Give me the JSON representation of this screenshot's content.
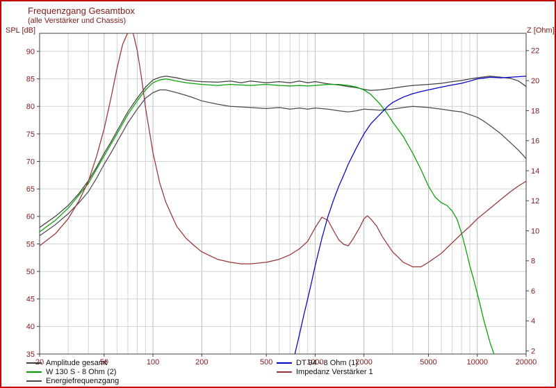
{
  "header": {
    "title": "Frequenzgang Gesamtbox",
    "subtitle": "(alle Verstärker und Chassis)"
  },
  "colors": {
    "window_border": "#c00000",
    "axis_text": "#801818",
    "grid": "#d2d2d2",
    "grid_major": "#bcbcbc",
    "plot_border": "#404040",
    "legend_text": "#101010",
    "amplitude": "#404040",
    "energie": "#4a4a4a",
    "w130s": "#00a000",
    "dt94": "#0000c8",
    "impedanz": "#993333"
  },
  "chart_data": {
    "type": "line",
    "title": "Frequenzgang Gesamtbox",
    "subtitle": "(alle Verstärker und Chassis)",
    "x_axis": {
      "scale": "log",
      "unit": "Hz",
      "min": 20,
      "max": 20000,
      "labeled_ticks": [
        20,
        50,
        100,
        200,
        500,
        1000,
        2000,
        5000,
        10000,
        20000
      ]
    },
    "y_left": {
      "label": "SPL [dB]",
      "unit": "dB",
      "min": 35,
      "max": 93.5,
      "ticks": [
        90,
        85,
        80,
        75,
        70,
        65,
        60,
        55,
        50,
        45,
        40,
        35
      ]
    },
    "y_right": {
      "label": "Z [Ohm]",
      "unit": "Ohm",
      "min": 2,
      "max": 23.4,
      "ticks": [
        22,
        20,
        18,
        16,
        14,
        12,
        10,
        8,
        6,
        4,
        2
      ]
    },
    "grid": true,
    "legend_position": "bottom",
    "series": [
      {
        "name": "Energiefrequenzgang",
        "axis": "spl",
        "color": "#4a4a4a",
        "points": [
          [
            20,
            56.5
          ],
          [
            25,
            58.5
          ],
          [
            30,
            60.5
          ],
          [
            35,
            62.5
          ],
          [
            40,
            64.5
          ],
          [
            45,
            67
          ],
          [
            50,
            69.5
          ],
          [
            55,
            71.5
          ],
          [
            60,
            73.5
          ],
          [
            70,
            77
          ],
          [
            80,
            79.5
          ],
          [
            90,
            81.5
          ],
          [
            100,
            82.5
          ],
          [
            110,
            83
          ],
          [
            120,
            83
          ],
          [
            140,
            82.5
          ],
          [
            160,
            82
          ],
          [
            180,
            81.5
          ],
          [
            200,
            81
          ],
          [
            250,
            80.4
          ],
          [
            300,
            80
          ],
          [
            400,
            79.8
          ],
          [
            500,
            79.6
          ],
          [
            600,
            79.8
          ],
          [
            700,
            79.5
          ],
          [
            800,
            79.7
          ],
          [
            900,
            79.5
          ],
          [
            1000,
            79.7
          ],
          [
            1200,
            79.5
          ],
          [
            1400,
            79.2
          ],
          [
            1600,
            79
          ],
          [
            1800,
            79.2
          ],
          [
            2000,
            79.5
          ],
          [
            2500,
            79.3
          ],
          [
            3000,
            79.5
          ],
          [
            3500,
            79.8
          ],
          [
            4000,
            80
          ],
          [
            5000,
            79.8
          ],
          [
            6000,
            79.5
          ],
          [
            7000,
            79.2
          ],
          [
            8000,
            79
          ],
          [
            9000,
            78.5
          ],
          [
            10000,
            78
          ],
          [
            11000,
            77.3
          ],
          [
            12000,
            76.5
          ],
          [
            14000,
            75
          ],
          [
            16000,
            73.4
          ],
          [
            18000,
            72
          ],
          [
            20000,
            70.5
          ]
        ]
      },
      {
        "name": "Amplitude gesamt",
        "axis": "spl",
        "color": "#404040",
        "points": [
          [
            20,
            58
          ],
          [
            25,
            60
          ],
          [
            30,
            62
          ],
          [
            35,
            64.2
          ],
          [
            40,
            66.5
          ],
          [
            45,
            69
          ],
          [
            50,
            71.5
          ],
          [
            55,
            73.5
          ],
          [
            60,
            75.5
          ],
          [
            70,
            79
          ],
          [
            80,
            81.5
          ],
          [
            90,
            83.5
          ],
          [
            100,
            84.8
          ],
          [
            110,
            85.3
          ],
          [
            120,
            85.5
          ],
          [
            140,
            85.2
          ],
          [
            160,
            84.8
          ],
          [
            180,
            84.6
          ],
          [
            200,
            84.5
          ],
          [
            250,
            84.4
          ],
          [
            300,
            84.6
          ],
          [
            350,
            84.3
          ],
          [
            400,
            84.6
          ],
          [
            500,
            84.3
          ],
          [
            600,
            84.5
          ],
          [
            700,
            84.3
          ],
          [
            800,
            84.6
          ],
          [
            900,
            84.3
          ],
          [
            1000,
            84.5
          ],
          [
            1200,
            84.1
          ],
          [
            1400,
            83.9
          ],
          [
            1600,
            83.6
          ],
          [
            1800,
            83.4
          ],
          [
            2000,
            83.1
          ],
          [
            2200,
            82.9
          ],
          [
            2500,
            83
          ],
          [
            3000,
            83.3
          ],
          [
            3500,
            83.6
          ],
          [
            4000,
            83.8
          ],
          [
            5000,
            84
          ],
          [
            6000,
            84.2
          ],
          [
            7000,
            84.5
          ],
          [
            8000,
            84.7
          ],
          [
            9000,
            85
          ],
          [
            10000,
            85.2
          ],
          [
            12000,
            85.5
          ],
          [
            14000,
            85.3
          ],
          [
            16000,
            85.1
          ],
          [
            18000,
            84.6
          ],
          [
            20000,
            83.6
          ]
        ]
      },
      {
        "name": "W 130 S - 8 Ohm (2)",
        "axis": "spl",
        "color": "#00a000",
        "points": [
          [
            20,
            57.2
          ],
          [
            25,
            59.3
          ],
          [
            30,
            61.5
          ],
          [
            40,
            66
          ],
          [
            50,
            71
          ],
          [
            60,
            75
          ],
          [
            70,
            78.5
          ],
          [
            80,
            81
          ],
          [
            90,
            83
          ],
          [
            100,
            84.3
          ],
          [
            110,
            84.8
          ],
          [
            120,
            85
          ],
          [
            140,
            84.6
          ],
          [
            160,
            84.3
          ],
          [
            200,
            84
          ],
          [
            250,
            83.8
          ],
          [
            300,
            84
          ],
          [
            400,
            83.8
          ],
          [
            500,
            84
          ],
          [
            600,
            83.8
          ],
          [
            700,
            83.7
          ],
          [
            800,
            83.8
          ],
          [
            900,
            83.7
          ],
          [
            1000,
            83.8
          ],
          [
            1200,
            84
          ],
          [
            1400,
            84
          ],
          [
            1600,
            83.8
          ],
          [
            1800,
            83.5
          ],
          [
            2000,
            83
          ],
          [
            2200,
            82.2
          ],
          [
            2500,
            80.5
          ],
          [
            2800,
            78.6
          ],
          [
            3000,
            77.2
          ],
          [
            3500,
            74.5
          ],
          [
            4000,
            71.5
          ],
          [
            4500,
            68.5
          ],
          [
            5000,
            65.5
          ],
          [
            5500,
            63.5
          ],
          [
            6000,
            62.5
          ],
          [
            6500,
            62
          ],
          [
            7000,
            61
          ],
          [
            7500,
            59.5
          ],
          [
            8000,
            57
          ],
          [
            8500,
            54
          ],
          [
            9000,
            51
          ],
          [
            9500,
            48.5
          ],
          [
            10000,
            46
          ],
          [
            10500,
            43.5
          ],
          [
            11000,
            41
          ],
          [
            11500,
            39
          ],
          [
            12000,
            37
          ],
          [
            12500,
            35.5
          ],
          [
            13000,
            34
          ]
        ]
      },
      {
        "name": "Impedanz Verstärker 1",
        "axis": "ohm",
        "color": "#993333",
        "points": [
          [
            20,
            9
          ],
          [
            25,
            9.8
          ],
          [
            30,
            10.8
          ],
          [
            35,
            12
          ],
          [
            40,
            13.3
          ],
          [
            45,
            15
          ],
          [
            50,
            16.8
          ],
          [
            55,
            18.8
          ],
          [
            60,
            20.8
          ],
          [
            65,
            22.4
          ],
          [
            70,
            23.2
          ],
          [
            75,
            23.3
          ],
          [
            80,
            22
          ],
          [
            85,
            20.2
          ],
          [
            90,
            18.2
          ],
          [
            100,
            15.2
          ],
          [
            110,
            13.2
          ],
          [
            120,
            11.9
          ],
          [
            140,
            10.3
          ],
          [
            160,
            9.5
          ],
          [
            180,
            9
          ],
          [
            200,
            8.6
          ],
          [
            250,
            8.1
          ],
          [
            300,
            7.9
          ],
          [
            350,
            7.8
          ],
          [
            400,
            7.8
          ],
          [
            500,
            7.9
          ],
          [
            600,
            8.1
          ],
          [
            700,
            8.4
          ],
          [
            800,
            8.8
          ],
          [
            900,
            9.3
          ],
          [
            1000,
            10.2
          ],
          [
            1100,
            10.9
          ],
          [
            1200,
            10.7
          ],
          [
            1300,
            10
          ],
          [
            1400,
            9.4
          ],
          [
            1500,
            9.1
          ],
          [
            1600,
            9
          ],
          [
            1700,
            9.4
          ],
          [
            1900,
            10.3
          ],
          [
            2000,
            10.8
          ],
          [
            2100,
            11
          ],
          [
            2200,
            10.8
          ],
          [
            2400,
            10.3
          ],
          [
            2600,
            9.6
          ],
          [
            3000,
            8.6
          ],
          [
            3500,
            7.9
          ],
          [
            4000,
            7.6
          ],
          [
            4500,
            7.6
          ],
          [
            5000,
            7.9
          ],
          [
            6000,
            8.5
          ],
          [
            7000,
            9.2
          ],
          [
            8000,
            9.8
          ],
          [
            9000,
            10.3
          ],
          [
            10000,
            10.8
          ],
          [
            12000,
            11.5
          ],
          [
            14000,
            12.1
          ],
          [
            16000,
            12.6
          ],
          [
            18000,
            13
          ],
          [
            20000,
            13.3
          ]
        ]
      },
      {
        "name": "DT 94 - 8 Ohm (1)",
        "axis": "spl",
        "color": "#0000c8",
        "points": [
          [
            700,
            32
          ],
          [
            750,
            35
          ],
          [
            800,
            38.5
          ],
          [
            850,
            42
          ],
          [
            900,
            45
          ],
          [
            950,
            48
          ],
          [
            1000,
            51
          ],
          [
            1100,
            56
          ],
          [
            1200,
            60
          ],
          [
            1300,
            63
          ],
          [
            1400,
            65.5
          ],
          [
            1500,
            67.5
          ],
          [
            1600,
            69.5
          ],
          [
            1800,
            72.5
          ],
          [
            2000,
            75
          ],
          [
            2200,
            76.8
          ],
          [
            2500,
            78.5
          ],
          [
            2800,
            80
          ],
          [
            3000,
            80.7
          ],
          [
            3500,
            81.7
          ],
          [
            4000,
            82.3
          ],
          [
            4500,
            82.7
          ],
          [
            5000,
            83
          ],
          [
            6000,
            83.5
          ],
          [
            7000,
            83.9
          ],
          [
            8000,
            84.2
          ],
          [
            9000,
            84.6
          ],
          [
            10000,
            85
          ],
          [
            12000,
            85.3
          ],
          [
            14000,
            85.2
          ],
          [
            16000,
            85.3
          ],
          [
            18000,
            85.4
          ],
          [
            20000,
            85.5
          ]
        ]
      }
    ]
  },
  "legend": {
    "columns": [
      [
        {
          "label": "Amplitude gesamt",
          "color": "#404040"
        },
        {
          "label": "W 130 S - 8 Ohm (2)",
          "color": "#00a000"
        },
        {
          "label": "Energiefrequenzgang",
          "color": "#4a4a4a"
        }
      ],
      [
        {
          "label": "DT 94 - 8 Ohm (1)",
          "color": "#0000c8"
        },
        {
          "label": "Impedanz Verstärker 1",
          "color": "#993333"
        }
      ]
    ]
  }
}
